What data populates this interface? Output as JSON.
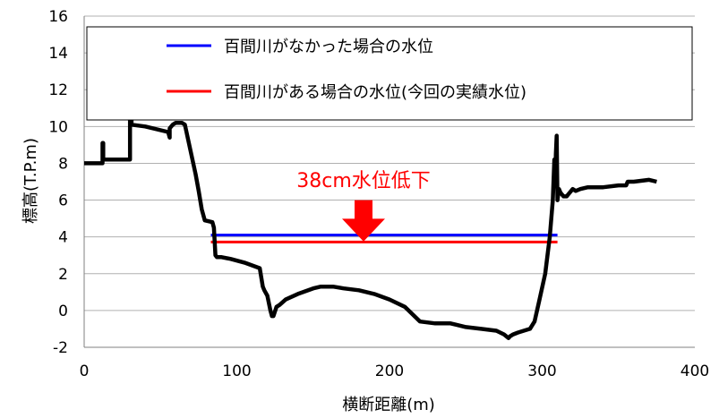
{
  "chart_data": {
    "type": "line",
    "title": "",
    "xlabel": "横断距離(m)",
    "ylabel": "標高(T.P.m)",
    "xlim": [
      0,
      400
    ],
    "ylim": [
      -2,
      16
    ],
    "x_ticks": [
      "0",
      "100",
      "200",
      "300",
      "400"
    ],
    "y_ticks": [
      "-2",
      "0",
      "2",
      "4",
      "6",
      "8",
      "10",
      "12",
      "14",
      "16"
    ],
    "grid": "horizontal",
    "legend_position": "top",
    "legend": [
      {
        "label": "百間川がなかった場合の水位",
        "color": "#0000ff"
      },
      {
        "label": "百間川がある場合の水位(今回の実績水位)",
        "color": "#ff0000"
      }
    ],
    "annotation": {
      "text": "38cm水位低下",
      "color": "#ff0000",
      "arrow_x": 183,
      "arrow_y_top": 6.0,
      "arrow_y_bottom": 3.75
    },
    "series": [
      {
        "name": "百間川がなかった場合の水位",
        "color": "#0000ff",
        "x": [
          83,
          310
        ],
        "y": [
          4.1,
          4.1
        ]
      },
      {
        "name": "百間川がある場合の水位(今回の実績水位)",
        "color": "#ff0000",
        "x": [
          83,
          310
        ],
        "y": [
          3.72,
          3.72
        ]
      },
      {
        "name": "",
        "color": "#000000",
        "x": [
          0,
          12,
          12,
          12.5,
          12.5,
          30,
          30,
          31,
          31,
          40,
          55,
          56,
          56,
          58,
          60,
          64,
          66,
          73,
          75,
          77,
          79,
          84,
          85,
          86,
          87,
          90,
          96,
          105,
          115,
          117,
          118,
          120,
          122,
          123,
          124,
          126,
          128,
          132,
          140,
          150,
          155,
          158,
          163,
          170,
          180,
          190,
          200,
          210,
          220,
          230,
          240,
          250,
          260,
          270,
          275,
          278,
          279,
          281,
          284,
          288,
          292,
          295,
          298,
          302,
          305,
          307,
          308,
          308.5,
          309,
          309.5,
          310,
          310.5,
          311,
          312,
          314,
          316,
          318,
          320,
          322,
          325,
          330,
          340,
          350,
          355,
          356,
          360,
          370,
          375
        ],
        "y": [
          8.0,
          8.0,
          9.1,
          9.1,
          8.2,
          8.2,
          11.4,
          11.4,
          10.1,
          10.0,
          9.7,
          9.4,
          9.9,
          10.1,
          10.2,
          10.2,
          10.1,
          7.4,
          6.5,
          5.5,
          4.9,
          4.8,
          4.5,
          3.0,
          2.9,
          2.9,
          2.8,
          2.6,
          2.3,
          1.3,
          1.1,
          0.8,
          0.0,
          -0.3,
          -0.3,
          0.2,
          0.3,
          0.6,
          0.9,
          1.2,
          1.3,
          1.3,
          1.3,
          1.2,
          1.1,
          0.9,
          0.6,
          0.2,
          -0.6,
          -0.7,
          -0.7,
          -0.9,
          -1.0,
          -1.1,
          -1.3,
          -1.5,
          -1.4,
          -1.3,
          -1.2,
          -1.1,
          -1.0,
          -0.6,
          0.5,
          2.0,
          4.0,
          6.0,
          8.2,
          6.8,
          8.5,
          9.5,
          6.0,
          6.3,
          6.6,
          6.4,
          6.2,
          6.2,
          6.4,
          6.6,
          6.5,
          6.6,
          6.7,
          6.7,
          6.8,
          6.8,
          7.0,
          7.0,
          7.1,
          7.0
        ]
      }
    ]
  }
}
